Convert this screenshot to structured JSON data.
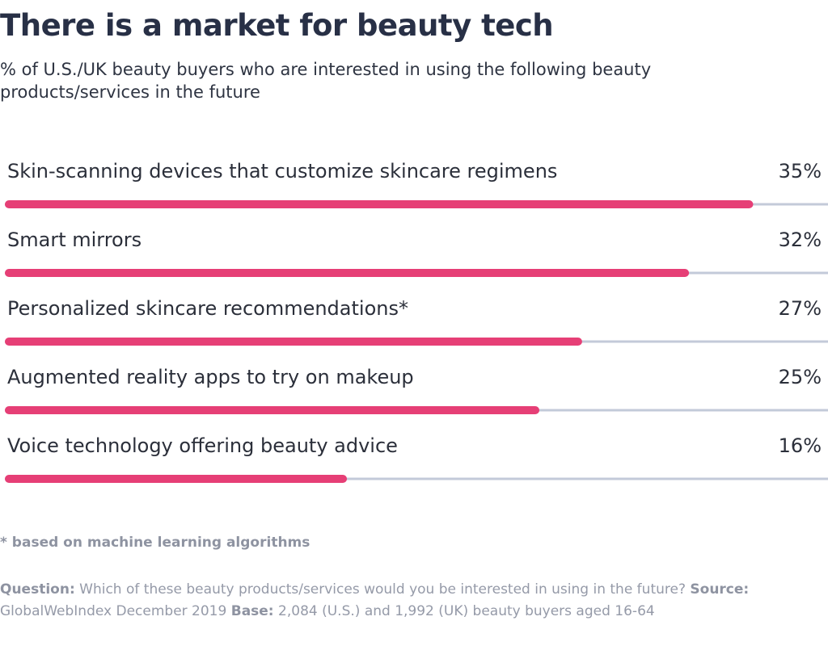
{
  "chart_data": {
    "type": "bar",
    "orientation": "horizontal",
    "title": "There is a market for beauty tech",
    "subtitle": "% of U.S./UK beauty buyers who are interested in using the following beauty products/services in the future",
    "categories": [
      "Skin-scanning devices that customize skincare regimens",
      "Smart mirrors",
      "Personalized skincare recommendations*",
      "Augmented reality apps to try on makeup",
      "Voice technology offering beauty advice"
    ],
    "values": [
      35,
      32,
      27,
      25,
      16
    ],
    "value_labels": [
      "35%",
      "32%",
      "27%",
      "25%",
      "16%"
    ],
    "unit": "%",
    "xlim": [
      0,
      38.5
    ],
    "grid": false,
    "legend": "none"
  },
  "colors": {
    "bar": "#e63f76",
    "track": "#c3cad9",
    "title": "#283046",
    "muted_text": "#959aa8"
  },
  "footnote": "* based on machine learning algorithms",
  "source": {
    "question_label": "Question:",
    "question": "Which of these beauty products/services would you be interested in using in the future?",
    "source_label": "Source:",
    "source": "GlobalWebIndex December 2019",
    "base_label": "Base:",
    "base": "2,084 (U.S.) and 1,992 (UK) beauty buyers aged 16-64"
  }
}
